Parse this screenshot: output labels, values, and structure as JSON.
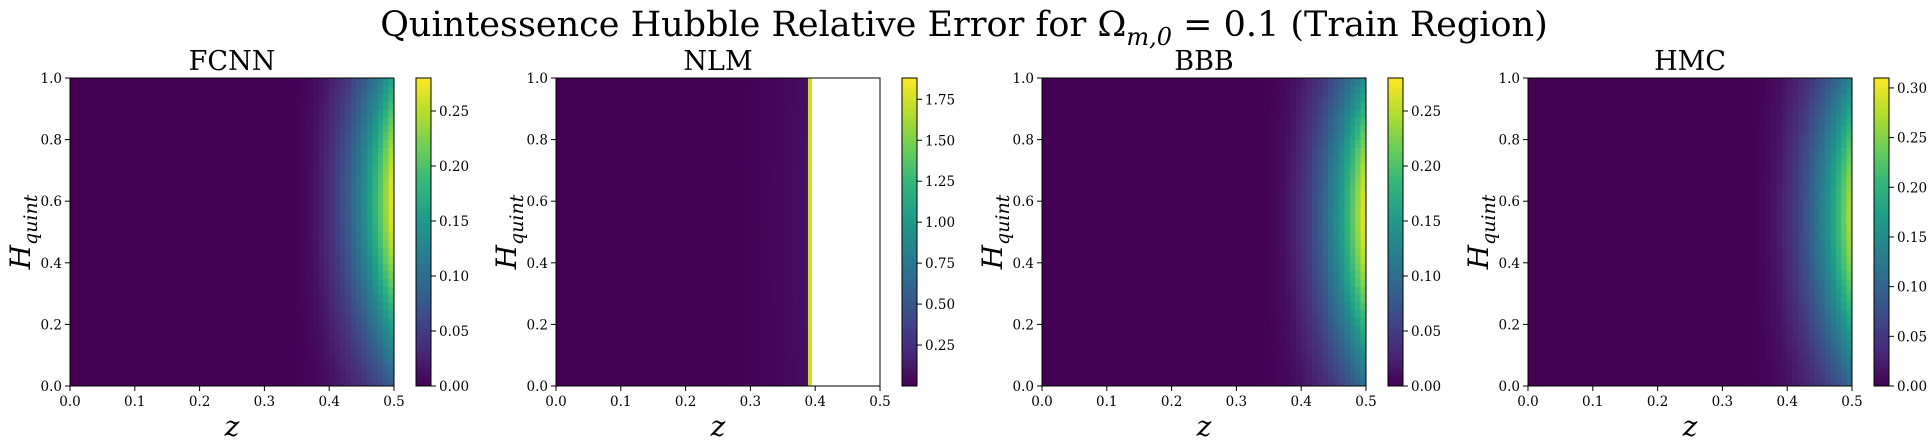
{
  "figure": {
    "title_prefix": "Quintessence Hubble Relative Error for Ω",
    "title_subscript": "m,0",
    "title_suffix": " = 0.1 (Train Region)"
  },
  "colormap": {
    "name": "viridis",
    "stops": [
      "#440154",
      "#482878",
      "#3e4989",
      "#31688e",
      "#26828e",
      "#1f9e89",
      "#35b779",
      "#6ece58",
      "#b5de2b",
      "#fde725"
    ]
  },
  "chart_data": [
    {
      "type": "heatmap",
      "title": "FCNN",
      "xlabel": "z",
      "ylabel_main": "H",
      "ylabel_sub": "quint",
      "xlim": [
        0.0,
        0.5
      ],
      "ylim": [
        0.0,
        1.0
      ],
      "xticks": [
        "0.0",
        "0.1",
        "0.2",
        "0.3",
        "0.4",
        "0.5"
      ],
      "yticks": [
        "0.0",
        "0.2",
        "0.4",
        "0.6",
        "0.8",
        "1.0"
      ],
      "colorbar": {
        "min": 0.0,
        "max": 0.28,
        "ticks": [
          "0.00",
          "0.05",
          "0.10",
          "0.15",
          "0.20",
          "0.25"
        ],
        "tick_values": [
          0.0,
          0.05,
          0.1,
          0.15,
          0.2,
          0.25
        ]
      },
      "field": {
        "z_onset": 0.33,
        "peak": 0.28,
        "peak_H": 0.6,
        "spread": 0.55,
        "power": 2.3
      }
    },
    {
      "type": "heatmap",
      "title": "NLM",
      "xlabel": "z",
      "ylabel_main": "H",
      "ylabel_sub": "quint",
      "xlim": [
        0.0,
        0.5
      ],
      "ylim": [
        0.0,
        1.0
      ],
      "xticks": [
        "0.0",
        "0.1",
        "0.2",
        "0.3",
        "0.4",
        "0.5"
      ],
      "yticks": [
        "0.0",
        "0.2",
        "0.4",
        "0.6",
        "0.8",
        "1.0"
      ],
      "colorbar": {
        "min": 0.0,
        "max": 1.88,
        "ticks": [
          "0.25",
          "0.50",
          "0.75",
          "1.00",
          "1.25",
          "1.50",
          "1.75"
        ],
        "tick_values": [
          0.25,
          0.5,
          0.75,
          1.0,
          1.25,
          1.5,
          1.75
        ]
      },
      "field": {
        "z_onset": 0.25,
        "peak": 0.3,
        "peak_H": 0.5,
        "spread": 1.0,
        "power": 2.0,
        "nan_from_z": 0.395
      }
    },
    {
      "type": "heatmap",
      "title": "BBB",
      "xlabel": "z",
      "ylabel_main": "H",
      "ylabel_sub": "quint",
      "xlim": [
        0.0,
        0.5
      ],
      "ylim": [
        0.0,
        1.0
      ],
      "xticks": [
        "0.0",
        "0.1",
        "0.2",
        "0.3",
        "0.4",
        "0.5"
      ],
      "yticks": [
        "0.0",
        "0.2",
        "0.4",
        "0.6",
        "0.8",
        "1.0"
      ],
      "colorbar": {
        "min": 0.0,
        "max": 0.28,
        "ticks": [
          "0.00",
          "0.05",
          "0.10",
          "0.15",
          "0.20",
          "0.25"
        ],
        "tick_values": [
          0.0,
          0.05,
          0.1,
          0.15,
          0.2,
          0.25
        ]
      },
      "field": {
        "z_onset": 0.33,
        "peak": 0.28,
        "peak_H": 0.55,
        "spread": 0.55,
        "power": 2.3
      }
    },
    {
      "type": "heatmap",
      "title": "HMC",
      "xlabel": "z",
      "ylabel_main": "H",
      "ylabel_sub": "quint",
      "xlim": [
        0.0,
        0.5
      ],
      "ylim": [
        0.0,
        1.0
      ],
      "xticks": [
        "0.0",
        "0.1",
        "0.2",
        "0.3",
        "0.4",
        "0.5"
      ],
      "yticks": [
        "0.0",
        "0.2",
        "0.4",
        "0.6",
        "0.8",
        "1.0"
      ],
      "colorbar": {
        "min": 0.0,
        "max": 0.31,
        "ticks": [
          "0.00",
          "0.05",
          "0.10",
          "0.15",
          "0.20",
          "0.25",
          "0.30"
        ],
        "tick_values": [
          0.0,
          0.05,
          0.1,
          0.15,
          0.2,
          0.25,
          0.3
        ]
      },
      "field": {
        "z_onset": 0.33,
        "peak": 0.28,
        "peak_H": 0.55,
        "spread": 0.55,
        "power": 2.3
      }
    }
  ]
}
